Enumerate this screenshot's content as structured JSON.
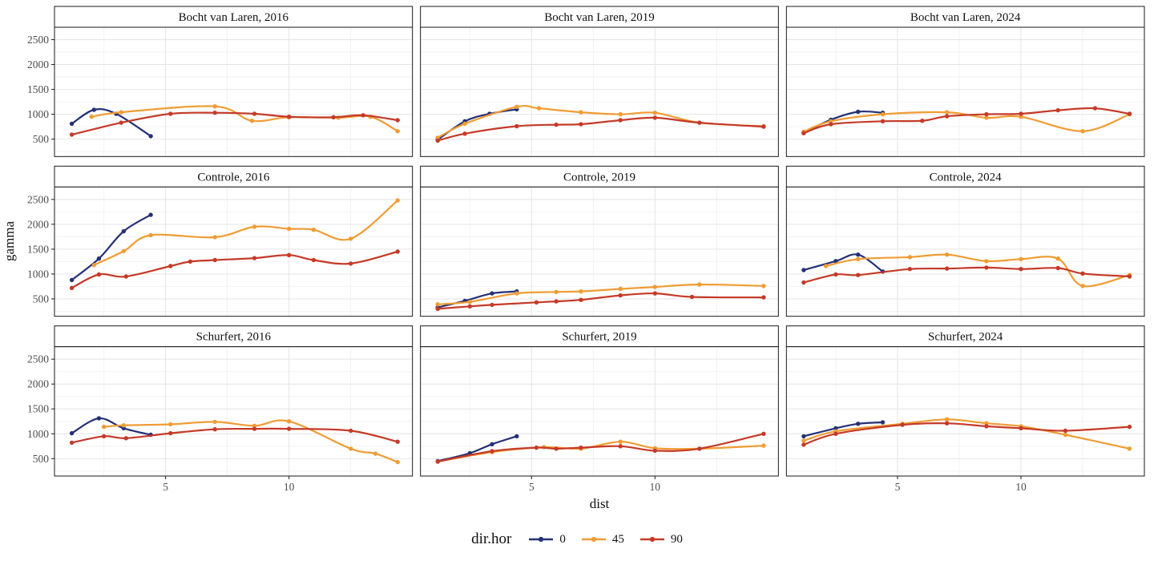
{
  "chart_data": {
    "type": "scatter",
    "title": "",
    "xlabel": "dist",
    "ylabel": "gamma",
    "xlim": [
      0.5,
      15
    ],
    "ylim": [
      150,
      2750
    ],
    "x_ticks": [
      5,
      10
    ],
    "x_minor": [
      2.5,
      7.5,
      12.5
    ],
    "y_ticks": [
      500,
      1000,
      1500,
      2000,
      2500
    ],
    "y_minor": [
      250,
      750,
      1250,
      1750,
      2250
    ],
    "grid": true,
    "legend": {
      "title": "dir.hor",
      "position": "bottom",
      "entries": [
        {
          "label": "0",
          "color": "#243077"
        },
        {
          "label": "45",
          "color": "#f09c33"
        },
        {
          "label": "90",
          "color": "#c53a28"
        }
      ]
    },
    "facet_rows": [
      "Bocht van Laren",
      "Controle",
      "Schurfert"
    ],
    "facet_cols": [
      "2016",
      "2019",
      "2024"
    ],
    "facets": [
      {
        "title": "Bocht van Laren, 2016",
        "series": [
          {
            "name": "0",
            "x": [
              1.2,
              2.1,
              3.0,
              4.4
            ],
            "y": [
              810,
              1090,
              1010,
              560
            ]
          },
          {
            "name": "45",
            "x": [
              2.0,
              3.2,
              7.0,
              8.5,
              10.0,
              12.0,
              13.3,
              14.4
            ],
            "y": [
              950,
              1040,
              1160,
              870,
              940,
              930,
              950,
              660
            ]
          },
          {
            "name": "90",
            "x": [
              1.2,
              3.2,
              5.2,
              7.0,
              8.6,
              10.0,
              11.8,
              13.0,
              14.4
            ],
            "y": [
              590,
              830,
              1010,
              1030,
              1010,
              950,
              940,
              980,
              880
            ]
          }
        ]
      },
      {
        "title": "Bocht van Laren, 2019",
        "series": [
          {
            "name": "0",
            "x": [
              1.2,
              2.3,
              3.3,
              4.4
            ],
            "y": [
              490,
              860,
              1010,
              1100
            ]
          },
          {
            "name": "45",
            "x": [
              1.2,
              2.3,
              4.4,
              5.3,
              7.0,
              8.6,
              10.0,
              11.8,
              14.4
            ],
            "y": [
              530,
              810,
              1150,
              1120,
              1040,
              1000,
              1030,
              830,
              760
            ]
          },
          {
            "name": "90",
            "x": [
              1.2,
              2.3,
              4.4,
              6.0,
              7.0,
              8.6,
              10.0,
              11.8,
              14.4
            ],
            "y": [
              470,
              610,
              760,
              790,
              800,
              880,
              930,
              830,
              750
            ]
          }
        ]
      },
      {
        "title": "Bocht van Laren, 2024",
        "series": [
          {
            "name": "0",
            "x": [
              1.2,
              2.3,
              3.4,
              4.4
            ],
            "y": [
              630,
              890,
              1050,
              1030
            ]
          },
          {
            "name": "45",
            "x": [
              1.2,
              2.3,
              4.4,
              7.0,
              8.6,
              10.0,
              12.5,
              14.4
            ],
            "y": [
              650,
              860,
              1000,
              1040,
              930,
              950,
              660,
              1000
            ]
          },
          {
            "name": "90",
            "x": [
              1.2,
              2.3,
              4.4,
              6.0,
              7.0,
              8.6,
              10.0,
              11.5,
              13.0,
              14.4
            ],
            "y": [
              620,
              800,
              860,
              870,
              960,
              1000,
              1010,
              1080,
              1120,
              1010
            ]
          }
        ]
      },
      {
        "title": "Controle, 2016",
        "series": [
          {
            "name": "0",
            "x": [
              1.2,
              2.3,
              3.3,
              4.4
            ],
            "y": [
              880,
              1310,
              1860,
              2190
            ]
          },
          {
            "name": "45",
            "x": [
              2.1,
              3.3,
              4.4,
              7.0,
              8.6,
              10.0,
              11.0,
              12.5,
              14.4
            ],
            "y": [
              1180,
              1460,
              1780,
              1740,
              1950,
              1910,
              1890,
              1710,
              2480
            ]
          },
          {
            "name": "90",
            "x": [
              1.2,
              2.3,
              3.4,
              5.2,
              6.0,
              7.0,
              8.6,
              10.0,
              11.0,
              12.5,
              14.4
            ],
            "y": [
              720,
              990,
              950,
              1160,
              1250,
              1280,
              1320,
              1380,
              1280,
              1210,
              1450
            ]
          }
        ]
      },
      {
        "title": "Controle, 2019",
        "series": [
          {
            "name": "0",
            "x": [
              1.2,
              2.3,
              3.4,
              4.4
            ],
            "y": [
              330,
              460,
              610,
              650
            ]
          },
          {
            "name": "45",
            "x": [
              1.2,
              2.5,
              4.4,
              6.0,
              7.0,
              8.6,
              10.0,
              11.8,
              14.4
            ],
            "y": [
              390,
              440,
              610,
              640,
              650,
              700,
              740,
              790,
              760
            ]
          },
          {
            "name": "90",
            "x": [
              1.2,
              2.5,
              3.4,
              5.2,
              6.0,
              7.0,
              8.6,
              10.0,
              11.5,
              14.4
            ],
            "y": [
              300,
              350,
              380,
              430,
              450,
              480,
              570,
              610,
              540,
              530
            ]
          }
        ]
      },
      {
        "title": "Controle, 2024",
        "series": [
          {
            "name": "0",
            "x": [
              1.2,
              2.5,
              3.4,
              4.4
            ],
            "y": [
              1080,
              1260,
              1390,
              1050
            ]
          },
          {
            "name": "45",
            "x": [
              2.1,
              3.4,
              5.5,
              7.0,
              8.6,
              10.0,
              11.5,
              12.5,
              14.4
            ],
            "y": [
              1160,
              1300,
              1340,
              1390,
              1260,
              1300,
              1310,
              760,
              980
            ]
          },
          {
            "name": "90",
            "x": [
              1.2,
              2.5,
              3.4,
              5.5,
              7.0,
              8.6,
              10.0,
              11.5,
              12.5,
              14.4
            ],
            "y": [
              830,
              990,
              980,
              1100,
              1110,
              1130,
              1100,
              1120,
              1010,
              950
            ]
          }
        ]
      },
      {
        "title": "Schurfert, 2016",
        "series": [
          {
            "name": "0",
            "x": [
              1.2,
              2.3,
              3.3,
              4.4
            ],
            "y": [
              1010,
              1310,
              1110,
              980
            ]
          },
          {
            "name": "45",
            "x": [
              2.5,
              3.3,
              5.2,
              7.0,
              8.6,
              10.0,
              12.5,
              13.5,
              14.4
            ],
            "y": [
              1140,
              1170,
              1190,
              1240,
              1160,
              1250,
              700,
              600,
              430
            ]
          },
          {
            "name": "90",
            "x": [
              1.2,
              2.5,
              3.4,
              5.2,
              7.0,
              8.6,
              10.0,
              12.5,
              14.4
            ],
            "y": [
              820,
              950,
              910,
              1010,
              1090,
              1100,
              1100,
              1060,
              840
            ]
          }
        ]
      },
      {
        "title": "Schurfert, 2019",
        "series": [
          {
            "name": "0",
            "x": [
              1.2,
              2.5,
              3.4,
              4.4
            ],
            "y": [
              450,
              610,
              790,
              950
            ]
          },
          {
            "name": "45",
            "x": [
              1.2,
              3.4,
              5.5,
              7.0,
              8.6,
              10.0,
              11.8,
              14.4
            ],
            "y": [
              440,
              630,
              730,
              700,
              840,
              710,
              700,
              760
            ]
          },
          {
            "name": "90",
            "x": [
              1.2,
              3.4,
              5.2,
              6.0,
              7.0,
              8.6,
              10.0,
              11.8,
              14.4
            ],
            "y": [
              440,
              650,
              720,
              700,
              720,
              750,
              660,
              700,
              1000
            ]
          }
        ]
      },
      {
        "title": "Schurfert, 2024",
        "series": [
          {
            "name": "0",
            "x": [
              1.2,
              2.5,
              3.4,
              4.4
            ],
            "y": [
              950,
              1110,
              1200,
              1230
            ]
          },
          {
            "name": "45",
            "x": [
              1.2,
              2.5,
              5.2,
              7.0,
              8.6,
              10.0,
              11.8,
              14.4
            ],
            "y": [
              860,
              1050,
              1200,
              1290,
              1210,
              1150,
              980,
              700
            ]
          },
          {
            "name": "90",
            "x": [
              1.2,
              2.5,
              5.2,
              7.0,
              8.6,
              10.0,
              11.8,
              14.4
            ],
            "y": [
              780,
              1000,
              1180,
              1210,
              1150,
              1110,
              1060,
              1140
            ]
          }
        ]
      }
    ],
    "style": {
      "panel_border": "#1a1a1a",
      "grid_major": "#e4e4e4",
      "grid_minor": "#f2f2f2",
      "tick_label_color": "#4d4d4d",
      "strip_bg": "#ffffff",
      "text_color": "#111111"
    }
  }
}
